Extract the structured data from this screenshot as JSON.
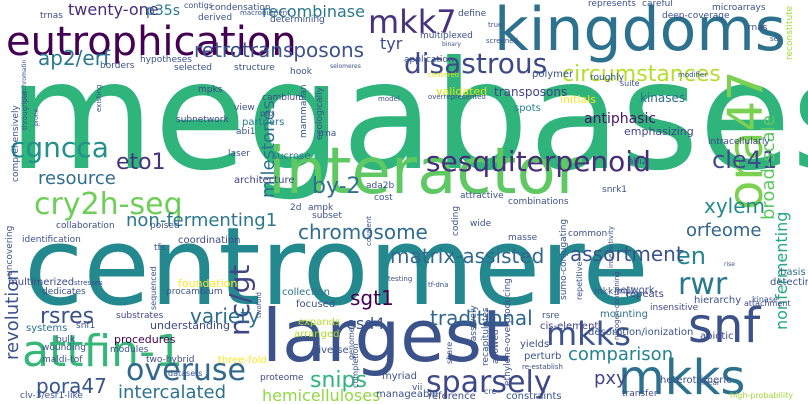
{
  "words": [
    {
      "text": "megabases",
      "color": "#2fb47c"
    },
    {
      "text": "centromere",
      "color": "#23898e"
    },
    {
      "text": "kingdoms",
      "color": "#2c728e"
    },
    {
      "text": "largest",
      "color": "#3b528b"
    },
    {
      "text": "interactor",
      "color": "#5ec962"
    },
    {
      "text": "eutrophication",
      "color": "#440154"
    },
    {
      "text": "mkks",
      "color": "#2c728e"
    },
    {
      "text": "snf",
      "color": "#3b528b"
    },
    {
      "text": "attfin-1",
      "color": "#35b779"
    },
    {
      "text": "overuse",
      "color": "#31688e"
    },
    {
      "text": "mkk7",
      "color": "#46327e"
    },
    {
      "text": "cry2h-seq",
      "color": "#6ece58"
    },
    {
      "text": "ora47",
      "color": "#7ad151"
    },
    {
      "text": "sesquiterpenoid",
      "color": "#472d7b"
    },
    {
      "text": "disastrous",
      "color": "#3e4989"
    },
    {
      "text": "cgncca",
      "color": "#21918c"
    },
    {
      "text": "sparsely",
      "color": "#3e4989"
    },
    {
      "text": "mkks",
      "color": "#3b528b"
    },
    {
      "text": "nc/gt",
      "color": "#414487"
    },
    {
      "text": "rwr",
      "color": "#2a788e"
    },
    {
      "text": "circumstances",
      "color": "#b5de2b"
    },
    {
      "text": "chromosome",
      "color": "#2f6c8e"
    },
    {
      "text": "matrix-assisted",
      "color": "#31688e"
    },
    {
      "text": "eto1",
      "color": "#46337e"
    },
    {
      "text": "cle41",
      "color": "#3e4a89"
    },
    {
      "text": "by-2",
      "color": "#2e6f8e"
    },
    {
      "text": "retrotransposons",
      "color": "#3b528b"
    },
    {
      "text": "ap2/erf",
      "color": "#2a788e"
    },
    {
      "text": "snips",
      "color": "#2fb47c"
    },
    {
      "text": "intercalated",
      "color": "#2c738e"
    },
    {
      "text": "hemicelluloses",
      "color": "#90d743"
    },
    {
      "text": "pora47",
      "color": "#38588c"
    },
    {
      "text": "variety",
      "color": "#2d708e"
    },
    {
      "text": "traditional",
      "color": "#31688e"
    },
    {
      "text": "comparison",
      "color": "#25838e"
    },
    {
      "text": "en",
      "color": "#25848e"
    },
    {
      "text": "pxy",
      "color": "#404688"
    },
    {
      "text": "assortment",
      "color": "#3b528b"
    },
    {
      "text": "orfeome",
      "color": "#32648e"
    },
    {
      "text": "xylem",
      "color": "#238a8d"
    },
    {
      "text": "broad-scale",
      "color": "#5ec962"
    },
    {
      "text": "rsres",
      "color": "#3b528b"
    },
    {
      "text": "sgt1",
      "color": "#440154"
    },
    {
      "text": "esd4",
      "color": "#3b528b"
    },
    {
      "text": "antiphasic",
      "color": "#481467"
    },
    {
      "text": "milestones",
      "color": "#2c728e"
    },
    {
      "text": "non-fermenting1",
      "color": "#2a788e"
    },
    {
      "text": "resource",
      "color": "#2e6e8e"
    },
    {
      "text": "revolution",
      "color": "#3b528b"
    },
    {
      "text": "twenty-one",
      "color": "#472c7a"
    },
    {
      "text": "p35s",
      "color": "#2a788e"
    },
    {
      "text": "recombinase",
      "color": "#2a788e"
    },
    {
      "text": "tyr",
      "color": "#3e4989"
    },
    {
      "text": "nonfermenting",
      "color": "#22a884"
    },
    {
      "text": "transposons",
      "color": "#414487"
    },
    {
      "text": "sucrose",
      "color": "#2c728e"
    },
    {
      "text": "three-fold",
      "color": "#fde725"
    },
    {
      "text": "foundation",
      "color": "#fde725"
    },
    {
      "text": "initials",
      "color": "#fde725"
    },
    {
      "text": "validated",
      "color": "#dde318"
    },
    {
      "text": "procedures",
      "color": "#440154"
    },
    {
      "text": "understanding",
      "color": "#3e4989"
    },
    {
      "text": "collection",
      "color": "#2c728e"
    },
    {
      "text": "focused",
      "color": "#3b528b"
    },
    {
      "text": "arranged",
      "color": "#addc30"
    },
    {
      "text": "expands",
      "color": "#b8de29"
    },
    {
      "text": "architecture",
      "color": "#404588"
    },
    {
      "text": "coordination",
      "color": "#3e4989"
    },
    {
      "text": "partners",
      "color": "#2a788e"
    },
    {
      "text": "kinases",
      "color": "#2e6e8e"
    },
    {
      "text": "polymer",
      "color": "#3b528b"
    },
    {
      "text": "spots",
      "color": "#25848e"
    },
    {
      "text": "emphasizing",
      "color": "#404688"
    },
    {
      "text": "intracellularly",
      "color": "#3e4989"
    },
    {
      "text": "detecting",
      "color": "#3b528b"
    },
    {
      "text": "basis",
      "color": "#2c728e"
    },
    {
      "text": "attachment",
      "color": "#3e4989"
    },
    {
      "text": "repeats",
      "color": "#404688"
    },
    {
      "text": "mounting",
      "color": "#2c728e"
    },
    {
      "text": "hierarchy",
      "color": "#3b528b"
    },
    {
      "text": "insensitive",
      "color": "#3e4989"
    },
    {
      "text": "network",
      "color": "#3b528b"
    },
    {
      "text": "abiotic",
      "color": "#3e4989"
    },
    {
      "text": "cis-element",
      "color": "#414487"
    },
    {
      "text": "desorption/ionization",
      "color": "#3b528b"
    },
    {
      "text": "yields",
      "color": "#3b528b"
    },
    {
      "text": "perturb",
      "color": "#3b528b"
    },
    {
      "text": "transfer",
      "color": "#3e4989"
    },
    {
      "text": "heterotrimeric",
      "color": "#3b528b"
    },
    {
      "text": "high-probability",
      "color": "#a2da37"
    },
    {
      "text": "reference",
      "color": "#3e4989"
    },
    {
      "text": "constraints",
      "color": "#3b528b"
    },
    {
      "text": "manageable",
      "color": "#3b528b"
    },
    {
      "text": "myriad",
      "color": "#3b528b"
    },
    {
      "text": "proteome",
      "color": "#3e4989"
    },
    {
      "text": "diverse",
      "color": "#3b528b"
    },
    {
      "text": "modules",
      "color": "#3b528b"
    },
    {
      "text": "bulk",
      "color": "#3b528b"
    },
    {
      "text": "substrates",
      "color": "#3e4989"
    },
    {
      "text": "two-hybrid",
      "color": "#3e4989"
    },
    {
      "text": "datasets",
      "color": "#3b528b"
    },
    {
      "text": "maldi-tof",
      "color": "#3b528b"
    },
    {
      "text": "wounding",
      "color": "#3b528b"
    },
    {
      "text": "dedicates",
      "color": "#3b528b"
    },
    {
      "text": "systems",
      "color": "#2c728e"
    },
    {
      "text": "snf1",
      "color": "#3b528b"
    },
    {
      "text": "multimerized",
      "color": "#3e4989"
    },
    {
      "text": "identification",
      "color": "#3b528b"
    },
    {
      "text": "collaboration",
      "color": "#3b528b"
    },
    {
      "text": "subnetwork",
      "color": "#3e4989"
    },
    {
      "text": "abi1",
      "color": "#3b528b"
    },
    {
      "text": "cambium",
      "color": "#3e4989"
    },
    {
      "text": "hook",
      "color": "#3b528b"
    },
    {
      "text": "mpks",
      "color": "#3e4989"
    },
    {
      "text": "selected",
      "color": "#3b528b"
    },
    {
      "text": "structure",
      "color": "#3b528b"
    },
    {
      "text": "hypotheses",
      "color": "#3b528b"
    },
    {
      "text": "borders",
      "color": "#3b528b"
    },
    {
      "text": "trnas",
      "color": "#3e4989"
    },
    {
      "text": "derived",
      "color": "#3b528b"
    },
    {
      "text": "condensation",
      "color": "#3b528b"
    },
    {
      "text": "determining",
      "color": "#3b528b"
    },
    {
      "text": "application",
      "color": "#3b528b"
    },
    {
      "text": "multiplexed",
      "color": "#3b528b"
    },
    {
      "text": "define",
      "color": "#3b528b"
    },
    {
      "text": "represents",
      "color": "#3b528b"
    },
    {
      "text": "roughly",
      "color": "#3b528b"
    },
    {
      "text": "careful",
      "color": "#3b528b"
    },
    {
      "text": "deep-coverage",
      "color": "#3b528b"
    },
    {
      "text": "microarrays",
      "color": "#3b528b"
    },
    {
      "text": "rnas",
      "color": "#3e4989"
    },
    {
      "text": "reconstitute",
      "color": "#a2da37"
    },
    {
      "text": "contigs",
      "color": "#3b528b"
    },
    {
      "text": "mammalian",
      "color": "#3b528b"
    },
    {
      "text": "ecologically",
      "color": "#3b528b"
    },
    {
      "text": "trna",
      "color": "#3b528b"
    },
    {
      "text": "laser",
      "color": "#3b528b"
    },
    {
      "text": "view",
      "color": "#3b528b"
    },
    {
      "text": "pro",
      "color": "#3b528b"
    },
    {
      "text": "2d",
      "color": "#3b528b"
    },
    {
      "text": "ampk",
      "color": "#3b528b"
    },
    {
      "text": "ada2b",
      "color": "#3b528b"
    },
    {
      "text": "abi2",
      "color": "#3b528b"
    },
    {
      "text": "snrk1",
      "color": "#3b528b"
    },
    {
      "text": "attractive",
      "color": "#3b528b"
    },
    {
      "text": "combinations",
      "color": "#3b528b"
    },
    {
      "text": "cost",
      "color": "#3b528b"
    },
    {
      "text": "subset",
      "color": "#3b528b"
    },
    {
      "text": "tfs",
      "color": "#3b528b"
    },
    {
      "text": "poised",
      "color": "#3b528b"
    },
    {
      "text": "wide",
      "color": "#3b528b"
    },
    {
      "text": "masse",
      "color": "#3b528b"
    },
    {
      "text": "common",
      "color": "#3b528b"
    },
    {
      "text": "coding",
      "color": "#3b528b"
    },
    {
      "text": "genome",
      "color": "#3b528b"
    },
    {
      "text": "share",
      "color": "#3b528b"
    },
    {
      "text": "massively",
      "color": "#3b528b"
    },
    {
      "text": "recapitulates",
      "color": "#3b528b"
    },
    {
      "text": "allowed",
      "color": "#3b528b"
    },
    {
      "text": "mkk-mpk",
      "color": "#3b528b"
    },
    {
      "text": "rsre",
      "color": "#3b528b"
    },
    {
      "text": "sumo-conjugating",
      "color": "#3b528b"
    },
    {
      "text": "repetitive",
      "color": "#3b528b"
    },
    {
      "text": "completion",
      "color": "#3b528b"
    },
    {
      "text": "ethylene-overproducing",
      "color": "#3b528b"
    },
    {
      "text": "procambium",
      "color": "#3b528b"
    },
    {
      "text": "sequenced",
      "color": "#3b528b"
    },
    {
      "text": "clv-3/esr1-like",
      "color": "#3b528b"
    },
    {
      "text": "vii",
      "color": "#3b528b"
    },
    {
      "text": "suite",
      "color": "#3b528b"
    },
    {
      "text": "modifier",
      "color": "#3b528b"
    },
    {
      "text": "kinase",
      "color": "#3b528b"
    },
    {
      "text": "uncovering",
      "color": "#3b528b"
    },
    {
      "text": "comprehensively",
      "color": "#3b528b"
    },
    {
      "text": "centered",
      "color": "#dde318"
    },
    {
      "text": "overrepresented",
      "color": "#3b528b"
    },
    {
      "text": "model",
      "color": "#3b528b"
    },
    {
      "text": "true",
      "color": "#3b528b"
    },
    {
      "text": "screened",
      "color": "#3b528b"
    },
    {
      "text": "existing",
      "color": "#3b528b"
    },
    {
      "text": "stresses",
      "color": "#3b528b"
    },
    {
      "text": "twofold",
      "color": "#3b528b"
    },
    {
      "text": "tf-dna",
      "color": "#3b528b"
    },
    {
      "text": "macronutrient",
      "color": "#3b528b"
    },
    {
      "text": "selomeres",
      "color": "#3b528b"
    },
    {
      "text": "nitrogen-containing",
      "color": "#3b528b"
    },
    {
      "text": "re-establish",
      "color": "#3b528b"
    },
    {
      "text": "linear",
      "color": "#3b528b"
    },
    {
      "text": "ser",
      "color": "#3b528b"
    },
    {
      "text": "throughput",
      "color": "#3b528b"
    },
    {
      "text": "insensitivity",
      "color": "#3b528b"
    },
    {
      "text": "testing",
      "color": "#3b528b"
    },
    {
      "text": "covalent",
      "color": "#3b528b"
    },
    {
      "text": "cre",
      "color": "#3b528b"
    },
    {
      "text": "binary",
      "color": "#3b528b"
    },
    {
      "text": "interchromatin",
      "color": "#3b528b"
    },
    {
      "text": "prone",
      "color": "#3b528b"
    },
    {
      "text": "rise",
      "color": "#3b528b"
    }
  ]
}
